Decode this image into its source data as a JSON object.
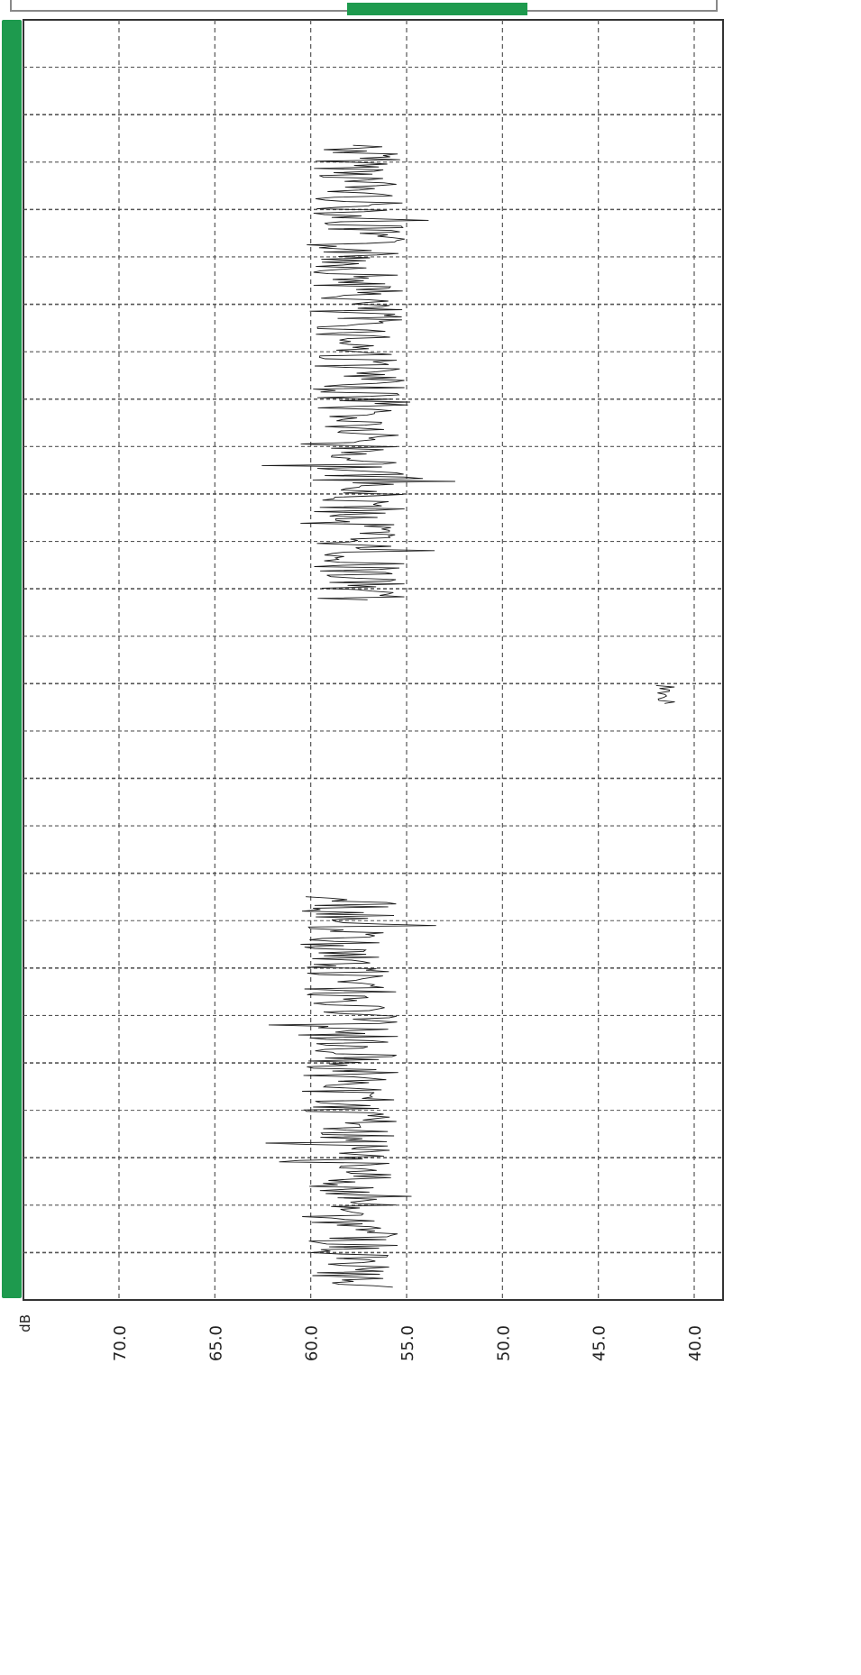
{
  "colors": {
    "accent": "#1e9a4e",
    "trace": "#1a1a1a",
    "grid": "#555555",
    "frame": "#333333"
  },
  "chart_data": {
    "type": "line",
    "orientation": "rotated",
    "unit_label": "dB",
    "ticks": [
      "70.0",
      "65.0",
      "60.0",
      "55.0",
      "50.0",
      "45.0",
      "40.0"
    ],
    "ylim": [
      40,
      75
    ],
    "grid": true,
    "series": [
      {
        "color": "#1a1a1a",
        "segments": [
          {
            "t": [
              0.098,
              0.453
            ],
            "mean": 57.5,
            "spread": 2.4,
            "seed": 7
          },
          {
            "t": [
              0.52,
              0.534
            ],
            "mean": 41.5,
            "spread": 0.6,
            "seed": 11
          },
          {
            "t": [
              0.685,
              0.99
            ],
            "mean": 58.0,
            "spread": 2.6,
            "seed": 23
          }
        ]
      }
    ]
  }
}
